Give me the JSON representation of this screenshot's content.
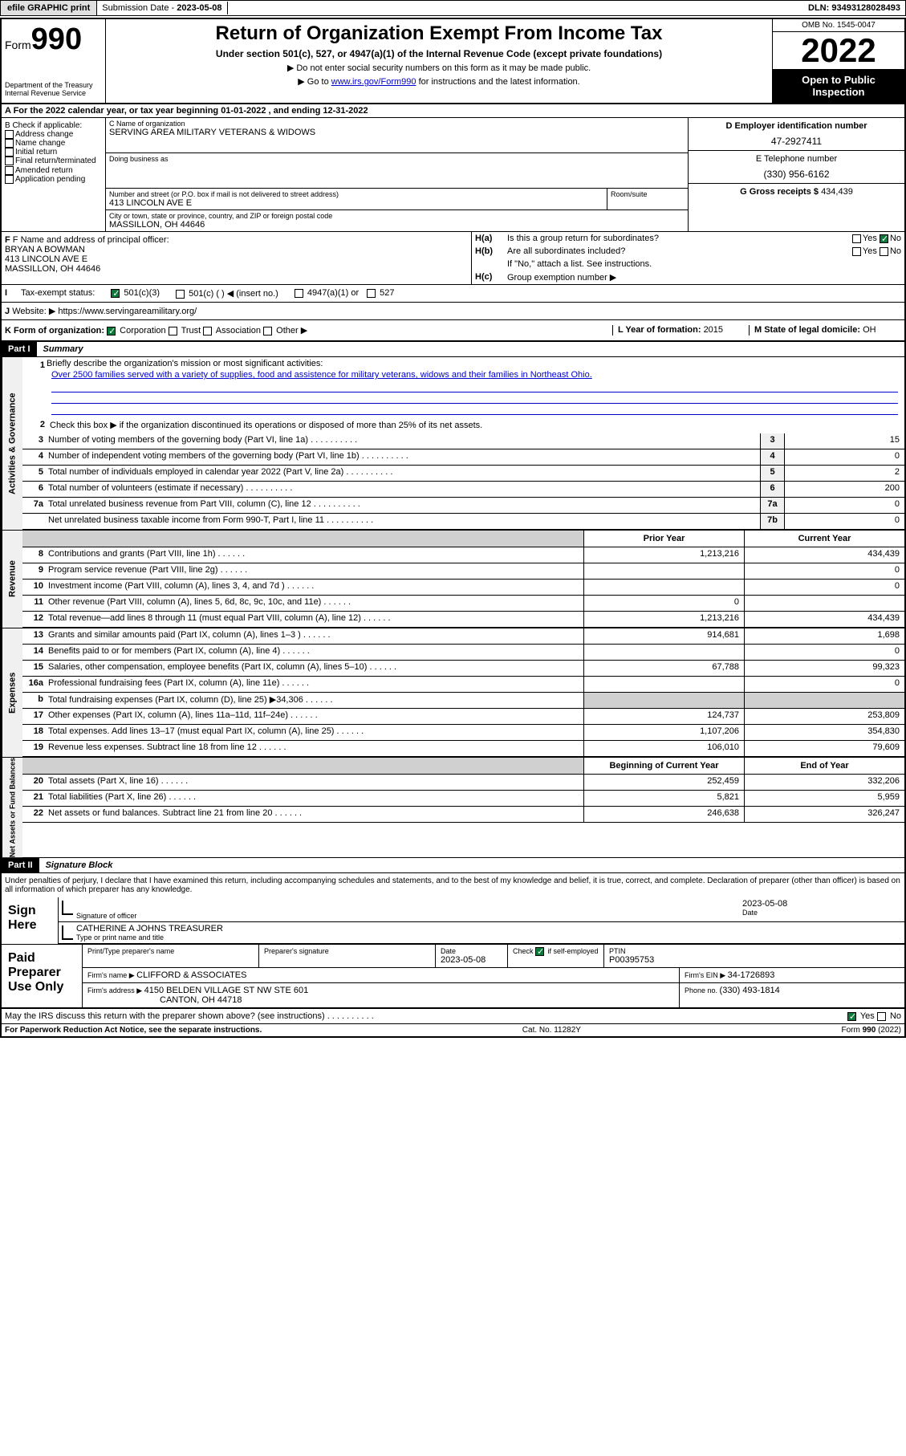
{
  "topbar": {
    "efile": "efile GRAPHIC print",
    "sub_lbl": "Submission Date - ",
    "sub_date": "2023-05-08",
    "dln_lbl": "DLN: ",
    "dln": "93493128028493"
  },
  "header": {
    "form_word": "Form",
    "form_num": "990",
    "dept": "Department of the Treasury",
    "irs": "Internal Revenue Service",
    "title": "Return of Organization Exempt From Income Tax",
    "subtitle": "Under section 501(c), 527, or 4947(a)(1) of the Internal Revenue Code (except private foundations)",
    "note1": "▶ Do not enter social security numbers on this form as it may be made public.",
    "note2_pre": "▶ Go to ",
    "note2_link": "www.irs.gov/Form990",
    "note2_post": " for instructions and the latest information.",
    "omb": "OMB No. 1545-0047",
    "year": "2022",
    "open": "Open to Public Inspection"
  },
  "lineA": "A For the 2022 calendar year, or tax year beginning 01-01-2022   , and ending 12-31-2022",
  "boxB": {
    "title": "B Check if applicable:",
    "items": [
      "Address change",
      "Name change",
      "Initial return",
      "Final return/terminated",
      "Amended return",
      "Application pending"
    ]
  },
  "boxC": {
    "lbl": "C Name of organization",
    "name": "SERVING AREA MILITARY VETERANS & WIDOWS",
    "dba": "Doing business as",
    "addr_lbl": "Number and street (or P.O. box if mail is not delivered to street address)",
    "room_lbl": "Room/suite",
    "addr": "413 LINCOLN AVE E",
    "city_lbl": "City or town, state or province, country, and ZIP or foreign postal code",
    "city": "MASSILLON, OH  44646"
  },
  "boxD": {
    "lbl": "D Employer identification number",
    "val": "47-2927411"
  },
  "boxE": {
    "lbl": "E Telephone number",
    "val": "(330) 956-6162"
  },
  "boxG": {
    "lbl": "G Gross receipts $ ",
    "val": "434,439"
  },
  "boxF": {
    "lbl": "F Name and address of principal officer:",
    "name": "BRYAN A BOWMAN",
    "addr1": "413 LINCOLN AVE E",
    "addr2": "MASSILLON, OH  44646"
  },
  "boxH": {
    "a_lbl": "H(a)",
    "a_txt": "Is this a group return for subordinates?",
    "b_lbl": "H(b)",
    "b_txt": "Are all subordinates included?",
    "b_note": "If \"No,\" attach a list. See instructions.",
    "c_lbl": "H(c)",
    "c_txt": "Group exemption number ▶",
    "yes": "Yes",
    "no": "No"
  },
  "lineI": {
    "lbl": "I",
    "txt": "Tax-exempt status:",
    "o1": "501(c)(3)",
    "o2": "501(c) (  ) ◀ (insert no.)",
    "o3": "4947(a)(1) or",
    "o4": "527"
  },
  "lineJ": {
    "lbl": "J",
    "txt": "Website: ▶",
    "val": "https://www.servingareamilitary.org/"
  },
  "lineK": {
    "lbl": "K Form of organization:",
    "o1": "Corporation",
    "o2": "Trust",
    "o3": "Association",
    "o4": "Other ▶",
    "l_lbl": "L Year of formation: ",
    "l_val": "2015",
    "m_lbl": "M State of legal domicile: ",
    "m_val": "OH"
  },
  "part1": {
    "hdr": "Part I",
    "title": "Summary"
  },
  "sects": {
    "ag": "Activities & Governance",
    "rev": "Revenue",
    "exp": "Expenses",
    "na": "Net Assets or Fund Balances"
  },
  "summary": {
    "q1": "Briefly describe the organization's mission or most significant activities:",
    "mission": "Over 2500 families served with a variety of supplies, food and assistence for military veterans, widows and their families in Northeast Ohio.",
    "q2": "Check this box ▶      if the organization discontinued its operations or disposed of more than 25% of its net assets.",
    "rows": [
      {
        "n": "3",
        "t": "Number of voting members of the governing body (Part VI, line 1a)",
        "b": "3",
        "v": "15"
      },
      {
        "n": "4",
        "t": "Number of independent voting members of the governing body (Part VI, line 1b)",
        "b": "4",
        "v": "0"
      },
      {
        "n": "5",
        "t": "Total number of individuals employed in calendar year 2022 (Part V, line 2a)",
        "b": "5",
        "v": "2"
      },
      {
        "n": "6",
        "t": "Total number of volunteers (estimate if necessary)",
        "b": "6",
        "v": "200"
      },
      {
        "n": "7a",
        "t": "Total unrelated business revenue from Part VIII, column (C), line 12",
        "b": "7a",
        "v": "0"
      },
      {
        "n": "",
        "t": "Net unrelated business taxable income from Form 990-T, Part I, line 11",
        "b": "7b",
        "v": "0"
      }
    ]
  },
  "fin": {
    "hdr_prior": "Prior Year",
    "hdr_curr": "Current Year",
    "rev": [
      {
        "n": "8",
        "t": "Contributions and grants (Part VIII, line 1h)",
        "p": "1,213,216",
        "c": "434,439"
      },
      {
        "n": "9",
        "t": "Program service revenue (Part VIII, line 2g)",
        "p": "",
        "c": "0"
      },
      {
        "n": "10",
        "t": "Investment income (Part VIII, column (A), lines 3, 4, and 7d )",
        "p": "",
        "c": "0"
      },
      {
        "n": "11",
        "t": "Other revenue (Part VIII, column (A), lines 5, 6d, 8c, 9c, 10c, and 11e)",
        "p": "0",
        "c": ""
      },
      {
        "n": "12",
        "t": "Total revenue—add lines 8 through 11 (must equal Part VIII, column (A), line 12)",
        "p": "1,213,216",
        "c": "434,439"
      }
    ],
    "exp": [
      {
        "n": "13",
        "t": "Grants and similar amounts paid (Part IX, column (A), lines 1–3 )",
        "p": "914,681",
        "c": "1,698"
      },
      {
        "n": "14",
        "t": "Benefits paid to or for members (Part IX, column (A), line 4)",
        "p": "",
        "c": "0"
      },
      {
        "n": "15",
        "t": "Salaries, other compensation, employee benefits (Part IX, column (A), lines 5–10)",
        "p": "67,788",
        "c": "99,323"
      },
      {
        "n": "16a",
        "t": "Professional fundraising fees (Part IX, column (A), line 11e)",
        "p": "",
        "c": "0"
      },
      {
        "n": "b",
        "t": "Total fundraising expenses (Part IX, column (D), line 25) ▶34,306",
        "p": null,
        "c": null
      },
      {
        "n": "17",
        "t": "Other expenses (Part IX, column (A), lines 11a–11d, 11f–24e)",
        "p": "124,737",
        "c": "253,809"
      },
      {
        "n": "18",
        "t": "Total expenses. Add lines 13–17 (must equal Part IX, column (A), line 25)",
        "p": "1,107,206",
        "c": "354,830"
      },
      {
        "n": "19",
        "t": "Revenue less expenses. Subtract line 18 from line 12",
        "p": "106,010",
        "c": "79,609"
      }
    ],
    "na_hdr_b": "Beginning of Current Year",
    "na_hdr_e": "End of Year",
    "na": [
      {
        "n": "20",
        "t": "Total assets (Part X, line 16)",
        "p": "252,459",
        "c": "332,206"
      },
      {
        "n": "21",
        "t": "Total liabilities (Part X, line 26)",
        "p": "5,821",
        "c": "5,959"
      },
      {
        "n": "22",
        "t": "Net assets or fund balances. Subtract line 21 from line 20",
        "p": "246,638",
        "c": "326,247"
      }
    ]
  },
  "part2": {
    "hdr": "Part II",
    "title": "Signature Block"
  },
  "sig": {
    "decl": "Under penalties of perjury, I declare that I have examined this return, including accompanying schedules and statements, and to the best of my knowledge and belief, it is true, correct, and complete. Declaration of preparer (other than officer) is based on all information of which preparer has any knowledge.",
    "here": "Sign Here",
    "off_lbl": "Signature of officer",
    "date_lbl": "Date",
    "date": "2023-05-08",
    "name": "CATHERINE A JOHNS TREASURER",
    "name_lbl": "Type or print name and title"
  },
  "prep": {
    "title": "Paid Preparer Use Only",
    "h1": "Print/Type preparer's name",
    "h2": "Preparer's signature",
    "h3": "Date",
    "h3v": "2023-05-08",
    "h4": "Check        if self-employed",
    "h5": "PTIN",
    "h5v": "P00395753",
    "firm_lbl": "Firm's name    ▶ ",
    "firm": "CLIFFORD & ASSOCIATES",
    "ein_lbl": "Firm's EIN ▶ ",
    "ein": "34-1726893",
    "addr_lbl": "Firm's address ▶ ",
    "addr1": "4150 BELDEN VILLAGE ST NW STE 601",
    "addr2": "CANTON, OH  44718",
    "ph_lbl": "Phone no. ",
    "ph": "(330) 493-1814",
    "discuss": "May the IRS discuss this return with the preparer shown above? (see instructions)",
    "yes": "Yes",
    "no": "No"
  },
  "foot": {
    "pra": "For Paperwork Reduction Act Notice, see the separate instructions.",
    "cat": "Cat. No. 11282Y",
    "form": "Form 990 (2022)"
  }
}
